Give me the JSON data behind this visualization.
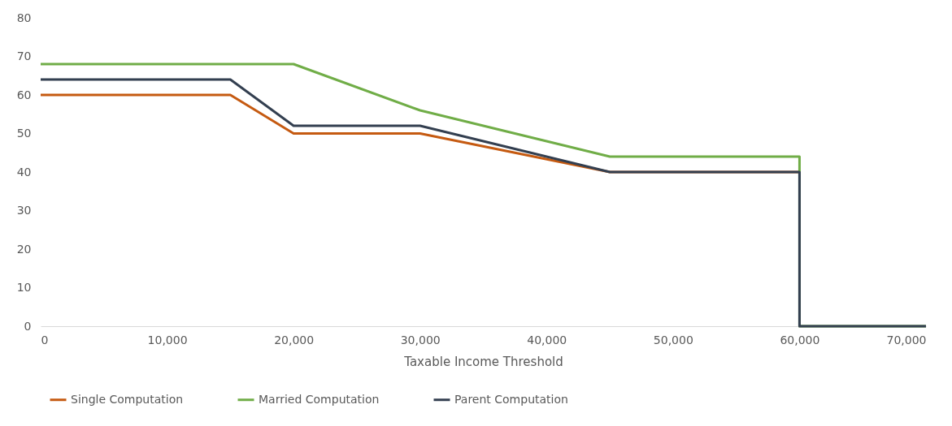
{
  "chart_data": {
    "type": "line",
    "xlabel": "Taxable Income Threshold",
    "xlim": [
      0,
      70000
    ],
    "xticks": [
      0,
      {
        "value": 10000,
        "label": "10,000"
      },
      {
        "value": 20000,
        "label": "20,000"
      },
      {
        "value": 30000,
        "label": "30,000"
      },
      {
        "value": 40000,
        "label": "40,000"
      },
      {
        "value": 50000,
        "label": "50,000"
      },
      {
        "value": 60000,
        "label": "60,000"
      },
      {
        "value": 70000,
        "label": "70,000"
      }
    ],
    "ylim": [
      0,
      80
    ],
    "yticks": [
      0,
      10,
      20,
      30,
      40,
      50,
      60,
      70,
      80
    ],
    "grid": false,
    "legend": "bottom",
    "marker": "none",
    "line_style": "solid",
    "series": [
      {
        "name": "Single Computation",
        "color": "#c55a11",
        "x": [
          0,
          15000,
          20000,
          30000,
          45000,
          60000
        ],
        "values": [
          60,
          60,
          50,
          50,
          40,
          40
        ]
      },
      {
        "name": "Married Computation",
        "color": "#70ad47",
        "x": [
          0,
          20000,
          30000,
          45000,
          60000,
          60000,
          70000
        ],
        "values": [
          68,
          68,
          56,
          44,
          44,
          0,
          0
        ]
      },
      {
        "name": "Parent Computation",
        "color": "#333f50",
        "x": [
          0,
          15000,
          20000,
          30000,
          45000,
          60000,
          60000,
          70000
        ],
        "values": [
          64,
          64,
          52,
          52,
          40,
          40,
          0,
          0
        ]
      }
    ]
  }
}
